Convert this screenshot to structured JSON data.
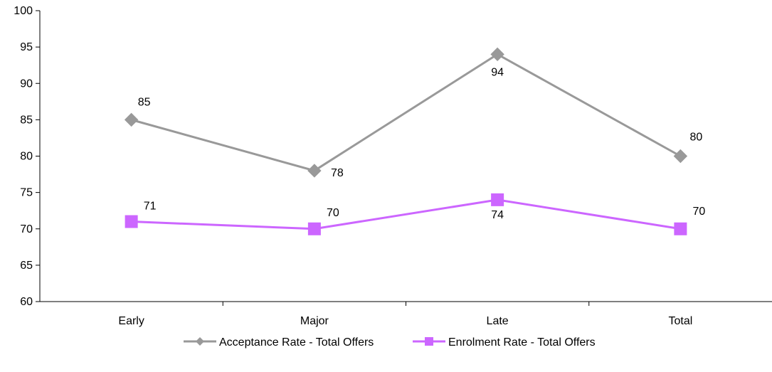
{
  "chart_data": {
    "type": "line",
    "title": "",
    "xlabel": "",
    "ylabel": "",
    "categories": [
      "Early",
      "Major",
      "Late",
      "Total"
    ],
    "ylim": [
      60,
      100
    ],
    "yticks": [
      60,
      65,
      70,
      75,
      80,
      85,
      90,
      95,
      100
    ],
    "grid": false,
    "legend_position": "bottom",
    "series": [
      {
        "name": "Acceptance Rate - Total Offers",
        "values": [
          85,
          78,
          94,
          80
        ],
        "labels": [
          "85",
          "78",
          "94",
          "80"
        ],
        "color": "#999999",
        "marker": "diamond"
      },
      {
        "name": "Enrolment Rate - Total Offers",
        "values": [
          71,
          70,
          74,
          70
        ],
        "labels": [
          "71",
          "70",
          "74",
          "70"
        ],
        "color": "#CC66FF",
        "marker": "square"
      }
    ]
  }
}
